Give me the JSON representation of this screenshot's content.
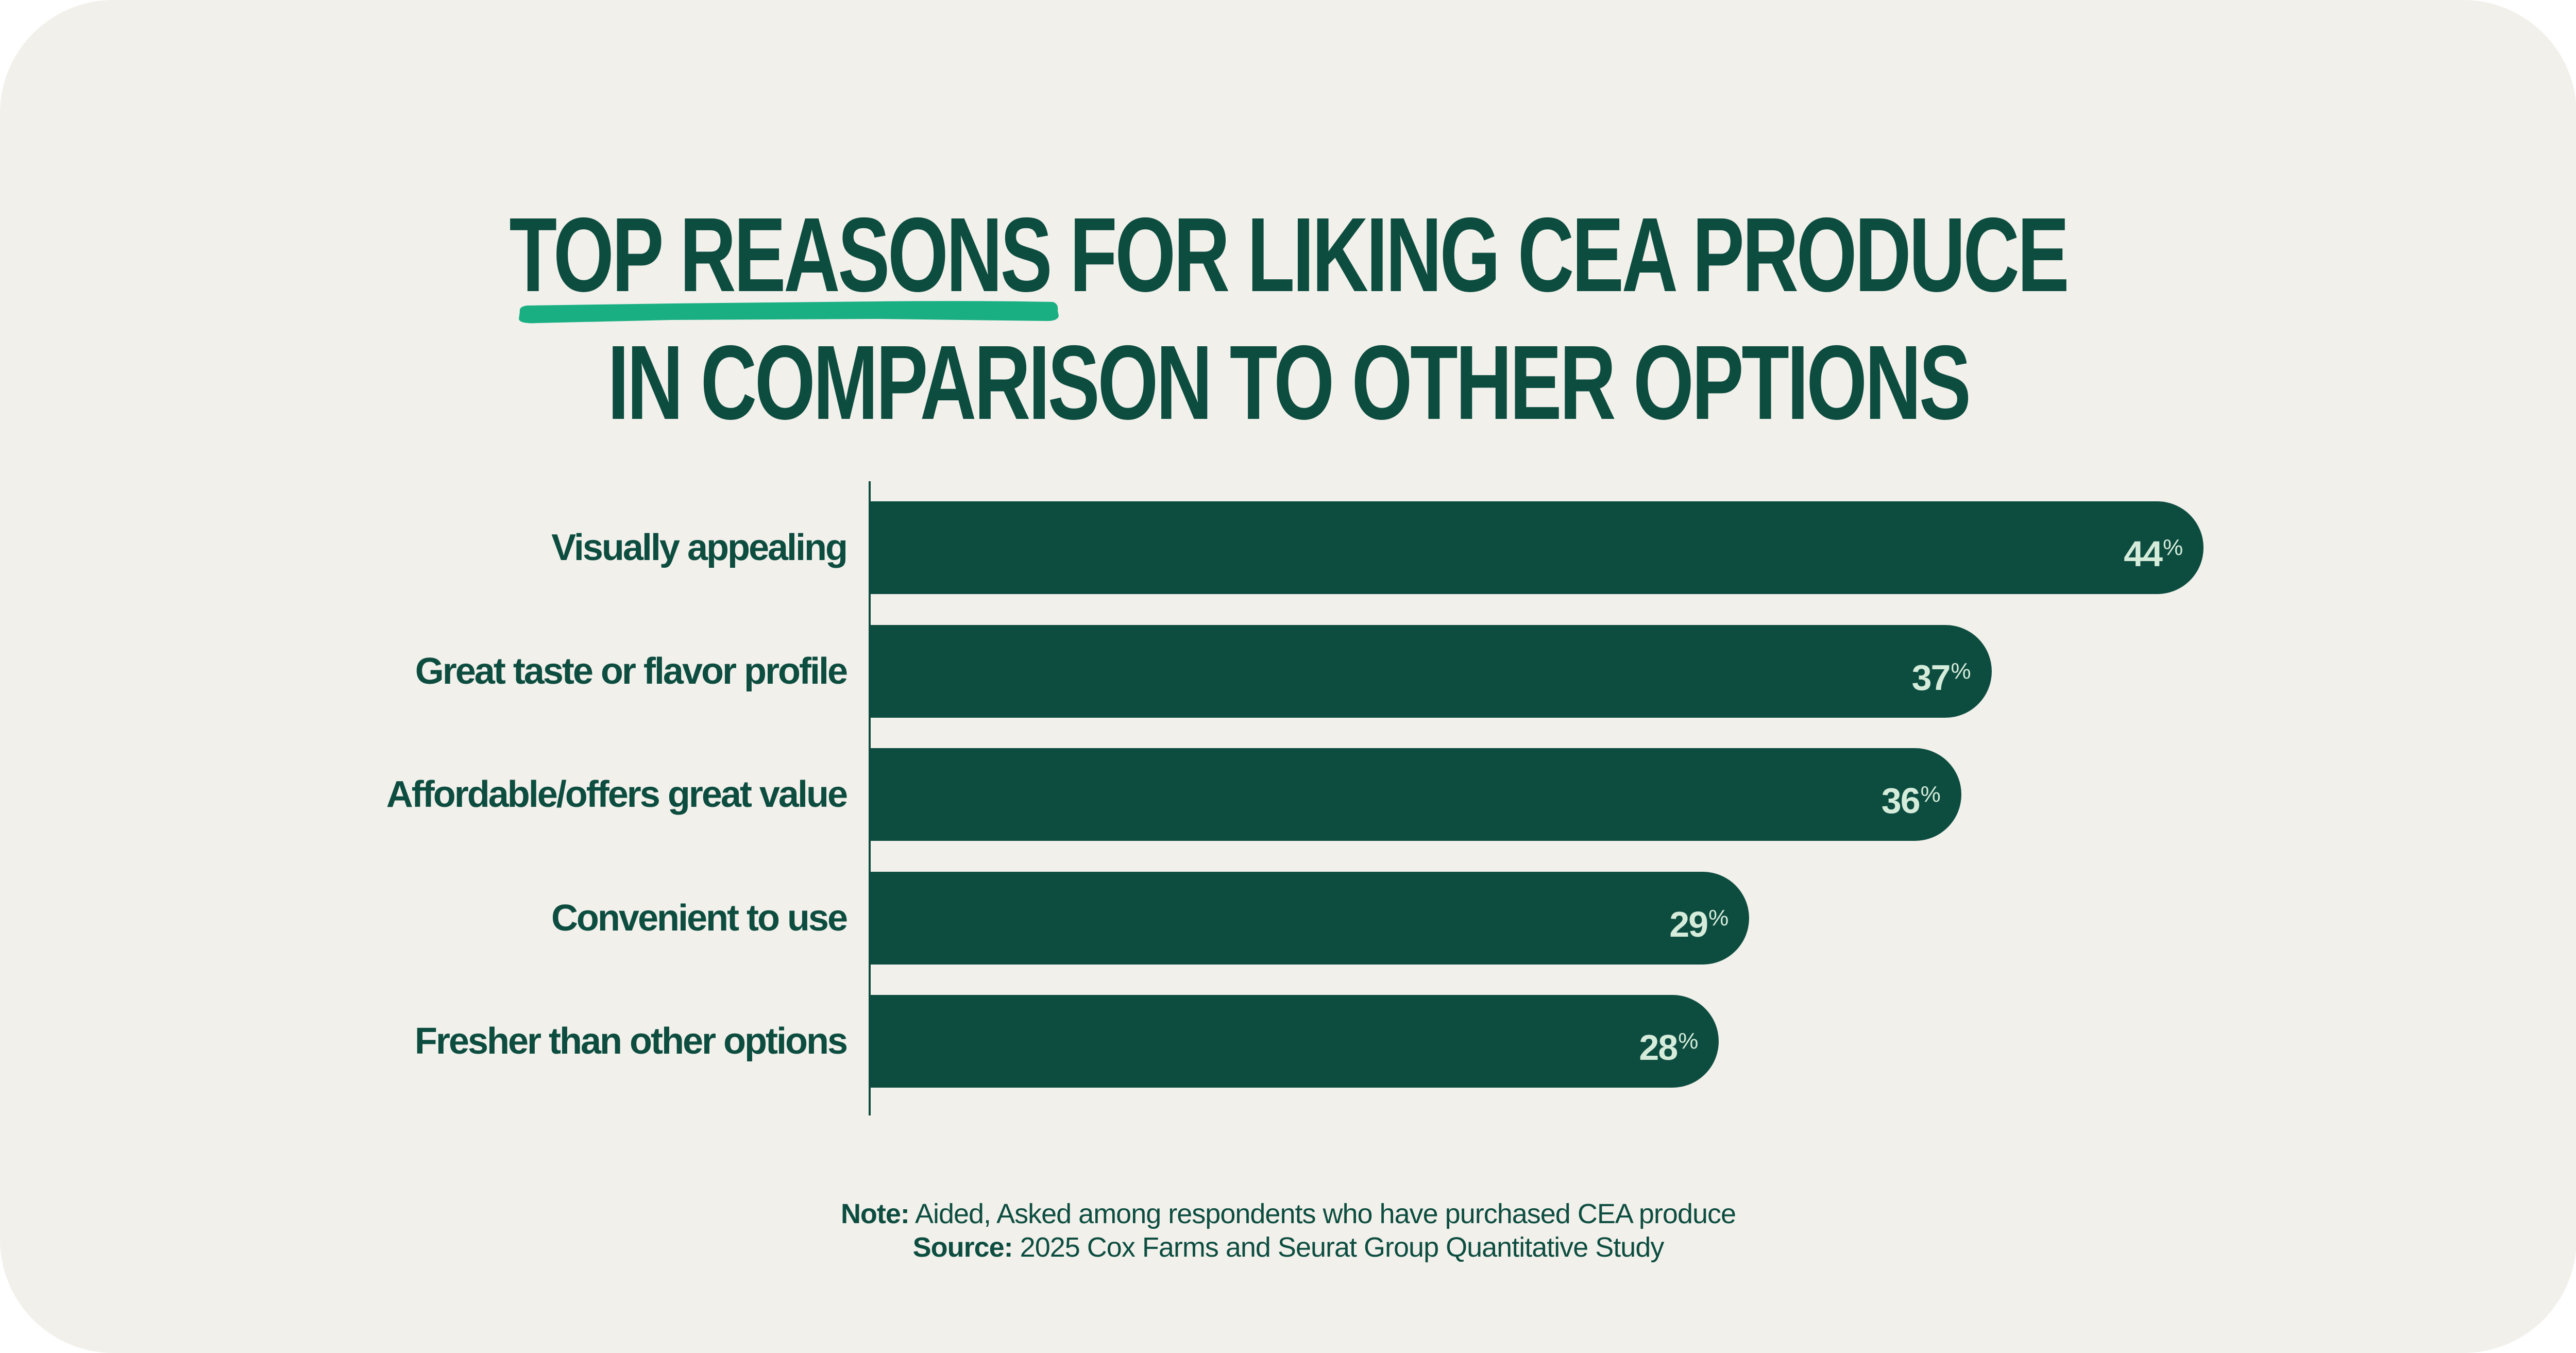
{
  "colors": {
    "background": "#f2f0eb",
    "bar": "#0d4d40",
    "text": "#0d4d40",
    "value_label": "#d6ecdb",
    "accent_underline": "#1aaf83"
  },
  "title": {
    "line1_highlight": "TOP REASONS",
    "line1_rest": " FOR LIKING CEA PRODUCE",
    "line2": "IN COMPARISON TO OTHER OPTIONS"
  },
  "footnote": {
    "note_label": "Note:",
    "note_text": " Aided, Asked among respondents who have purchased CEA produce",
    "source_label": "Source:",
    "source_text": " 2025 Cox Farms and Seurat Group Quantitative Study"
  },
  "chart_data": {
    "type": "bar",
    "orientation": "horizontal",
    "title": "TOP REASONS FOR LIKING CEA PRODUCE IN COMPARISON TO OTHER OPTIONS",
    "categories": [
      "Visually appealing",
      "Great taste or flavor profile",
      "Affordable/offers great value",
      "Convenient to use",
      "Fresher than other options"
    ],
    "values": [
      44,
      37,
      36,
      29,
      28
    ],
    "value_labels": [
      "44",
      "37",
      "36",
      "29",
      "28"
    ],
    "value_suffix": "%",
    "unit": "%",
    "xlabel": "",
    "ylabel": "",
    "xlim": [
      0,
      44
    ],
    "grid": false,
    "legend": "none"
  }
}
